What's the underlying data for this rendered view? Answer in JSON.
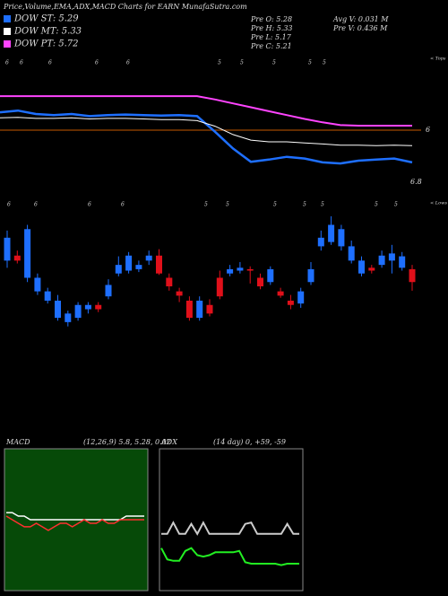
{
  "title": "Price,Volume,EMA,ADX,MACD Charts for EARN MunafaSutra.com",
  "info": [
    "Pre O: 5.28",
    "Pre H: 5.33",
    "Pre L: 5.17",
    "Pre C: 5.21",
    "Avg V: 0.031 M",
    "Pre V: 0.436 M"
  ],
  "chart_data": [
    {
      "type": "line",
      "ylim": [
        4.5,
        7
      ],
      "top_labels": [
        "6",
        "6",
        "6",
        "6",
        "6",
        "5",
        "5",
        "5",
        "5",
        "5"
      ],
      "corner_label": "< Tops",
      "right_labels": [
        "6",
        "6.8"
      ],
      "series": [
        {
          "name": "DOW ST: 5.29",
          "color": "#1e6fff",
          "values": [
            5.95,
            5.98,
            5.92,
            5.9,
            5.92,
            5.88,
            5.9,
            5.91,
            5.9,
            5.89,
            5.9,
            5.88,
            5.6,
            5.3,
            5.06,
            5.1,
            5.15,
            5.12,
            5.05,
            5.03,
            5.08,
            5.1,
            5.12,
            5.05
          ]
        },
        {
          "name": "DOW MT: 5.33",
          "color": "#ffffff",
          "values": [
            5.85,
            5.86,
            5.84,
            5.84,
            5.85,
            5.83,
            5.84,
            5.84,
            5.83,
            5.82,
            5.82,
            5.8,
            5.7,
            5.55,
            5.45,
            5.42,
            5.42,
            5.4,
            5.38,
            5.36,
            5.36,
            5.35,
            5.36,
            5.35
          ]
        },
        {
          "name": "DOW PT: 5.72",
          "color": "#ff44ff",
          "values": [
            6.24,
            6.24,
            6.24,
            6.24,
            6.24,
            6.24,
            6.24,
            6.24,
            6.24,
            6.24,
            6.24,
            6.24,
            6.18,
            6.11,
            6.04,
            5.97,
            5.9,
            5.83,
            5.77,
            5.72,
            5.71,
            5.71,
            5.71,
            5.71
          ]
        }
      ]
    },
    {
      "type": "candlestick",
      "ylim": [
        4.6,
        6.2
      ],
      "up_color": "#1e6fff",
      "down_color": "#e0101a",
      "top_labels": [
        "6",
        "6",
        "6",
        "6",
        "5",
        "5",
        "5",
        "5",
        "5",
        "5",
        "5"
      ],
      "corner_label": "< Lows",
      "open": [
        5.79,
        5.825,
        5.67,
        5.575,
        5.51,
        5.39,
        5.36,
        5.39,
        5.45,
        5.48,
        5.54,
        5.7,
        5.72,
        5.73,
        5.79,
        5.825,
        5.67,
        5.575,
        5.51,
        5.39,
        5.48,
        5.67,
        5.7,
        5.72,
        5.73,
        5.67,
        5.64,
        5.575,
        5.51,
        5.49,
        5.64,
        5.89,
        5.92,
        5.89,
        5.79,
        5.7,
        5.74,
        5.76,
        5.79,
        5.74,
        5.73
      ],
      "close": [
        5.95,
        5.79,
        6.01,
        5.67,
        5.575,
        5.51,
        5.42,
        5.48,
        5.48,
        5.45,
        5.62,
        5.76,
        5.825,
        5.76,
        5.825,
        5.7,
        5.61,
        5.545,
        5.39,
        5.51,
        5.42,
        5.54,
        5.73,
        5.74,
        5.72,
        5.61,
        5.73,
        5.545,
        5.48,
        5.575,
        5.73,
        5.95,
        6.04,
        6.01,
        5.89,
        5.79,
        5.72,
        5.825,
        5.84,
        5.82,
        5.64
      ],
      "high": [
        6.0,
        5.86,
        6.04,
        5.7,
        5.6,
        5.55,
        5.44,
        5.5,
        5.5,
        5.5,
        5.66,
        5.82,
        5.85,
        5.79,
        5.86,
        5.87,
        5.7,
        5.6,
        5.54,
        5.54,
        5.52,
        5.72,
        5.76,
        5.78,
        5.75,
        5.7,
        5.75,
        5.6,
        5.55,
        5.6,
        5.78,
        6.0,
        6.1,
        6.04,
        5.93,
        5.82,
        5.76,
        5.86,
        5.9,
        5.85,
        5.76
      ],
      "low": [
        5.74,
        5.77,
        5.64,
        5.55,
        5.49,
        5.37,
        5.33,
        5.37,
        5.42,
        5.43,
        5.52,
        5.68,
        5.7,
        5.71,
        5.76,
        5.69,
        5.58,
        5.5,
        5.37,
        5.37,
        5.4,
        5.52,
        5.68,
        5.7,
        5.63,
        5.59,
        5.62,
        5.53,
        5.45,
        5.46,
        5.62,
        5.86,
        5.9,
        5.86,
        5.77,
        5.68,
        5.7,
        5.74,
        5.7,
        5.72,
        5.58
      ]
    },
    {
      "type": "line",
      "title": "MACD",
      "subtitle": "(12,26,9) 5.8, 5.28, 0.02",
      "background": "#064a08",
      "ylim": [
        -20,
        20
      ],
      "series": [
        {
          "color": "#ffffff",
          "values": [
            2,
            2,
            1,
            1,
            0,
            0,
            0,
            0,
            0,
            0,
            0,
            0,
            0,
            0,
            0,
            0,
            0,
            0,
            0,
            0,
            1,
            1,
            1,
            1
          ]
        },
        {
          "color": "#ff3030",
          "values": [
            1,
            0,
            -1,
            -2,
            -2,
            -1,
            -2,
            -3,
            -2,
            -1,
            -1,
            -2,
            -1,
            0,
            -1,
            -1,
            0,
            -1,
            -1,
            0,
            0,
            0,
            0,
            0
          ]
        }
      ]
    },
    {
      "type": "line",
      "title": "ADX",
      "subtitle": "(14 day) 0, +59, -59",
      "background": "#000000",
      "ylim": [
        0,
        100
      ],
      "series": [
        {
          "color": "#cccccc",
          "values": [
            40,
            40,
            48,
            40,
            40,
            47,
            40,
            48,
            40,
            40,
            40,
            40,
            40,
            40,
            47,
            48,
            40,
            40,
            40,
            40,
            40,
            47,
            40,
            40
          ]
        },
        {
          "color": "#22ee22",
          "values": [
            30,
            22,
            21,
            21,
            28,
            30,
            25,
            24,
            25,
            27,
            27,
            27,
            27,
            28,
            20,
            19,
            19,
            19,
            19,
            19,
            18,
            19,
            19,
            19
          ]
        }
      ]
    }
  ]
}
